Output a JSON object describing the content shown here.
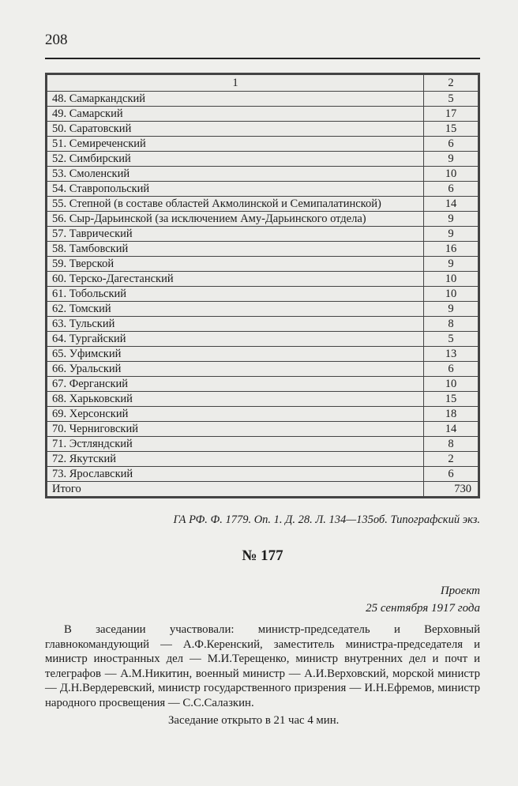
{
  "page_number": "208",
  "table": {
    "headers": [
      "1",
      "2"
    ],
    "rows": [
      [
        "48. Самаркандский",
        "5"
      ],
      [
        "49. Самарский",
        "17"
      ],
      [
        "50. Саратовский",
        "15"
      ],
      [
        "51. Семиреченский",
        "6"
      ],
      [
        "52. Симбирский",
        "9"
      ],
      [
        "53. Смоленский",
        "10"
      ],
      [
        "54. Ставропольский",
        "6"
      ],
      [
        "55. Степной (в составе областей Акмолинской и Семипалатинской)",
        "14"
      ],
      [
        "56. Сыр-Дарьинской (за исключением Аму-Дарьинского отдела)",
        "9"
      ],
      [
        "57. Таврический",
        "9"
      ],
      [
        "58. Тамбовский",
        "16"
      ],
      [
        "59. Тверской",
        "9"
      ],
      [
        "60. Терско-Дагестанский",
        "10"
      ],
      [
        "61. Тобольский",
        "10"
      ],
      [
        "62. Томский",
        "9"
      ],
      [
        "63. Тульский",
        "8"
      ],
      [
        "64. Тургайский",
        "5"
      ],
      [
        "65. Уфимский",
        "13"
      ],
      [
        "66. Уральский",
        "6"
      ],
      [
        "67. Ферганский",
        "10"
      ],
      [
        "68. Харьковский",
        "15"
      ],
      [
        "69. Херсонский",
        "18"
      ],
      [
        "70. Черниговский",
        "14"
      ],
      [
        "71. Эстляндский",
        "8"
      ],
      [
        "72. Якутский",
        "2"
      ],
      [
        "73. Ярославский",
        "6"
      ]
    ],
    "total": [
      "Итого",
      "730"
    ]
  },
  "source": "ГА РФ. Ф. 1779. Оп. 1. Д. 28. Л. 134—135об. Типографский экз.",
  "doc_number": "№ 177",
  "status": "Проект",
  "date": "25 сентября 1917 года",
  "paragraph": "В заседании участвовали: министр-председатель и Верховный главнокомандующий — А.Ф.Керенский, заместитель министра-председателя и министр иностранных дел — М.И.Терещенко, министр внутренних дел и почт и телеграфов — А.М.Никитин, военный министр — А.И.Верховский, морской министр — Д.Н.Вердеревский, министр государственного призрения — И.Н.Ефремов, министр народного просвещения — С.С.Салазкин.",
  "opened": "Заседание открыто в 21 час 4 мин."
}
